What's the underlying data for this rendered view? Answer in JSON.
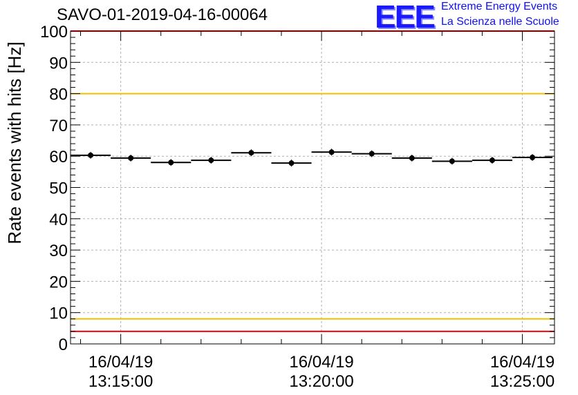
{
  "chart_data": {
    "type": "scatter",
    "title": "SAVO-01-2019-04-16-00064",
    "ylabel": "Rate events with hits [Hz]",
    "xlabel": "",
    "ylim": [
      0,
      100
    ],
    "yticks": [
      "0",
      "10",
      "20",
      "30",
      "40",
      "50",
      "60",
      "70",
      "80",
      "90",
      "100"
    ],
    "xlim_minutes": [
      -1.25,
      10.8
    ],
    "xticks": [
      {
        "minute": 0,
        "date": "16/04/19",
        "time": "13:15:00"
      },
      {
        "minute": 5,
        "date": "16/04/19",
        "time": "13:20:00"
      },
      {
        "minute": 10,
        "date": "16/04/19",
        "time": "13:25:00"
      }
    ],
    "series": [
      {
        "name": "rate",
        "bin_width_minutes": 1.0,
        "x_minutes": [
          -0.75,
          0.25,
          1.25,
          2.25,
          3.25,
          4.25,
          5.25,
          6.25,
          7.25,
          8.25,
          9.25,
          10.25
        ],
        "values": [
          60.3,
          59.4,
          58.0,
          58.7,
          61.1,
          57.8,
          61.3,
          60.8,
          59.4,
          58.4,
          58.7,
          59.6
        ]
      }
    ],
    "reference_lines": [
      {
        "name": "upper-red-limit",
        "value": 100,
        "color": "#ff0000"
      },
      {
        "name": "upper-yellow-limit",
        "value": 80,
        "color": "#f0c000"
      },
      {
        "name": "lower-yellow-limit",
        "value": 8,
        "color": "#f0c000"
      },
      {
        "name": "lower-red-limit",
        "value": 4,
        "color": "#ff0000"
      }
    ],
    "grid": true
  },
  "logo": {
    "mark": "EEE",
    "line1": "Extreme Energy Events",
    "line2": "La Scienza nelle Scuole"
  }
}
